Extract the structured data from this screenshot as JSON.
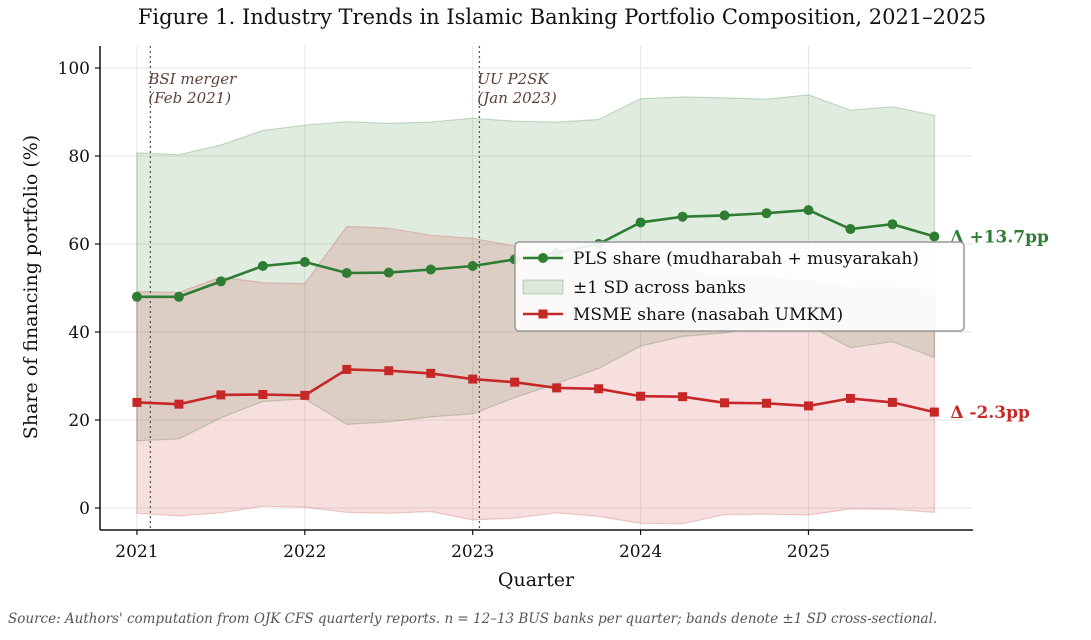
{
  "chart_data": {
    "type": "line",
    "title": "Figure 1. Industry Trends in Islamic Banking Portfolio Composition, 2021–2025",
    "xlabel": "Quarter",
    "ylabel": "Share of financing portfolio (%)",
    "xlim": [
      2020.78,
      2025.98
    ],
    "ylim": [
      -5,
      105
    ],
    "x_ticks": [
      2021,
      2022,
      2023,
      2024,
      2025
    ],
    "y_ticks": [
      0,
      20,
      40,
      60,
      80,
      100
    ],
    "grid": true,
    "legend_position": "center-right",
    "x": [
      2021.0,
      2021.25,
      2021.5,
      2021.75,
      2022.0,
      2022.25,
      2022.5,
      2022.75,
      2023.0,
      2023.25,
      2023.5,
      2023.75,
      2024.0,
      2024.25,
      2024.5,
      2024.75,
      2025.0,
      2025.25,
      2025.5,
      2025.75
    ],
    "series": [
      {
        "name": "PLS share (mudharabah + musyarakah)",
        "color": "#2e7d32",
        "marker": "circle",
        "values": [
          48.0,
          48.0,
          51.5,
          55.0,
          55.9,
          53.4,
          53.5,
          54.2,
          55.0,
          56.5,
          58.0,
          60.0,
          64.9,
          66.2,
          66.5,
          67.0,
          67.7,
          63.4,
          64.5,
          61.7
        ],
        "band_upper": [
          80.7,
          80.3,
          82.5,
          85.8,
          87.0,
          87.8,
          87.4,
          87.7,
          88.6,
          87.9,
          87.7,
          88.3,
          93.0,
          93.4,
          93.2,
          92.9,
          93.9,
          90.4,
          91.2,
          89.2
        ],
        "band_lower": [
          15.3,
          15.7,
          20.5,
          24.2,
          24.8,
          19.0,
          19.6,
          20.7,
          21.4,
          25.1,
          28.3,
          31.7,
          36.8,
          39.0,
          39.8,
          41.1,
          41.5,
          36.4,
          37.8,
          34.2
        ],
        "annotation": "Δ +13.7pp"
      },
      {
        "name": "MSME share (nasabah UMKM)",
        "color": "#c62828",
        "marker": "square",
        "values": [
          24.0,
          23.6,
          25.7,
          25.8,
          25.6,
          31.5,
          31.2,
          30.6,
          29.3,
          28.6,
          27.3,
          27.1,
          25.4,
          25.3,
          23.9,
          23.8,
          23.2,
          24.9,
          24.0,
          21.8
        ],
        "band_upper": [
          49.2,
          49.0,
          52.5,
          51.2,
          51.0,
          64.0,
          63.6,
          62.0,
          61.3,
          59.5,
          57.8,
          57.4,
          54.3,
          54.2,
          52.3,
          52.3,
          51.5,
          50.0,
          50.1,
          49.4
        ],
        "band_lower": [
          -1.2,
          -1.8,
          -1.1,
          0.4,
          0.2,
          -1.0,
          -1.2,
          -0.8,
          -2.7,
          -2.3,
          -1.1,
          -1.9,
          -3.5,
          -3.6,
          -1.5,
          -1.4,
          -1.6,
          -0.2,
          -0.3,
          -1.0
        ],
        "annotation": "Δ -2.3pp"
      }
    ],
    "band_legend_label": "±1 SD across banks",
    "vlines": [
      {
        "x": 2021.08,
        "label_lines": [
          "BSI merger",
          "(Feb 2021)"
        ]
      },
      {
        "x": 2023.04,
        "label_lines": [
          "UU P2SK",
          "(Jan 2023)"
        ]
      }
    ]
  },
  "source_note": "Source: Authors' computation from OJK CFS quarterly reports. n = 12–13 BUS banks per quarter; bands denote ±1 SD cross-sectional."
}
